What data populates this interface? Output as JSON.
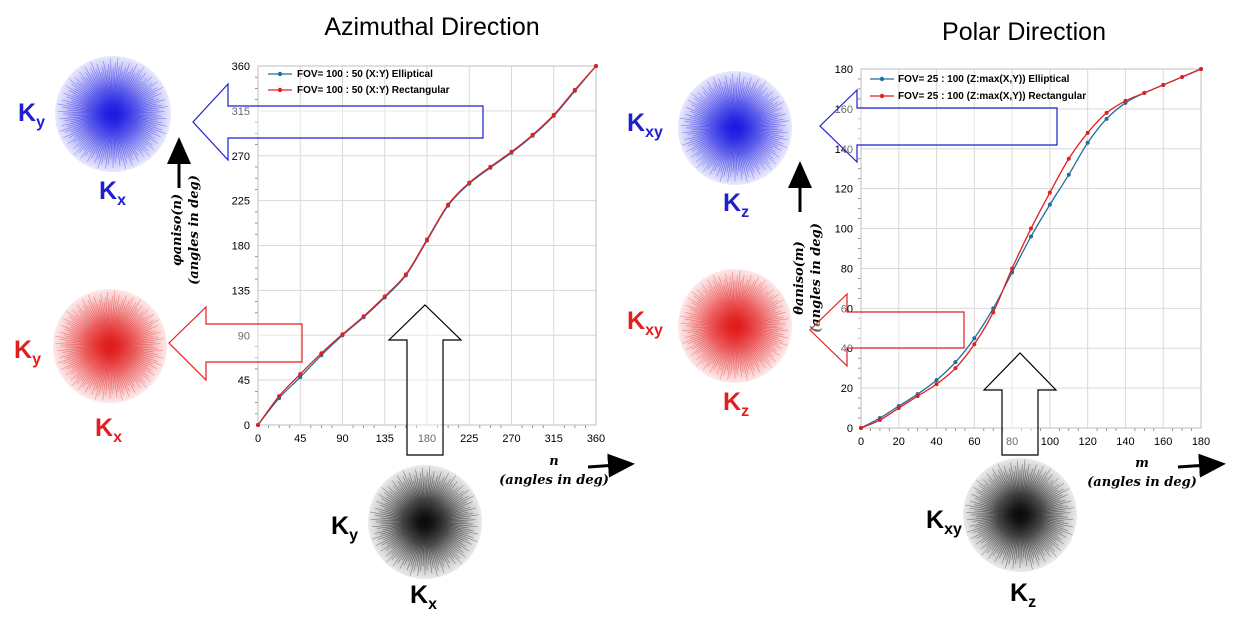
{
  "colors": {
    "blue": "#1f1fd0",
    "red": "#e02020",
    "black": "#111111",
    "series_blue": "#1f6f9f",
    "series_red": "#e02020",
    "grid": "#d9d9d9"
  },
  "panels": [
    {
      "title": "Azimuthal Direction"
    },
    {
      "title": "Polar Direction"
    }
  ],
  "chart_data": [
    {
      "type": "line",
      "title": "Azimuthal Direction",
      "xlabel_var": "n",
      "xlabel_unit": "(angles in deg)",
      "ylabel_var": "φaniso(n)",
      "ylabel_unit": "(angles in deg)",
      "xlim": [
        0,
        360
      ],
      "ylim": [
        0,
        360
      ],
      "xticks": [
        0,
        45,
        90,
        135,
        180,
        225,
        270,
        315,
        360
      ],
      "yticks": [
        0,
        45,
        90,
        135,
        180,
        225,
        270,
        315,
        360
      ],
      "grid": true,
      "legend_position": "top-left",
      "series": [
        {
          "name": "FOV= 100 : 50 (X:Y) Elliptical",
          "x": [
            0,
            22.5,
            45,
            67.5,
            90,
            112.5,
            135,
            157.5,
            180,
            202.5,
            225,
            247.5,
            270,
            292.5,
            315,
            337.5,
            360
          ],
          "y": [
            0,
            27,
            48,
            70,
            90,
            108,
            128,
            150,
            185,
            220,
            242,
            258,
            273,
            290,
            310,
            335,
            360
          ]
        },
        {
          "name": "FOV= 100 : 50 (X:Y) Rectangular",
          "x": [
            0,
            22.5,
            45,
            67.5,
            90,
            112.5,
            135,
            157.5,
            180,
            202.5,
            225,
            247.5,
            270,
            292.5,
            315,
            337.5,
            360
          ],
          "y": [
            0,
            29,
            51,
            72,
            91,
            109,
            129,
            151,
            186,
            221,
            243,
            259,
            274,
            291,
            311,
            336,
            360
          ]
        }
      ]
    },
    {
      "type": "line",
      "title": "Polar Direction",
      "xlabel_var": "m",
      "xlabel_unit": "(angles in deg)",
      "ylabel_var": "θaniso(m)",
      "ylabel_unit": "(angles in deg)",
      "xlim": [
        0,
        180
      ],
      "ylim": [
        0,
        180
      ],
      "xticks": [
        0,
        20,
        40,
        60,
        80,
        100,
        120,
        140,
        160,
        180
      ],
      "yticks": [
        0,
        20,
        40,
        60,
        80,
        100,
        120,
        140,
        160,
        180
      ],
      "grid": true,
      "legend_position": "top-left",
      "series": [
        {
          "name": "FOV= 25 : 100 (Z:max(X,Y)) Elliptical",
          "x": [
            0,
            10,
            20,
            30,
            40,
            50,
            60,
            70,
            80,
            90,
            100,
            110,
            120,
            130,
            140,
            150,
            160,
            170,
            180
          ],
          "y": [
            0,
            5,
            11,
            17,
            24,
            33,
            45,
            60,
            78,
            96,
            112,
            127,
            143,
            155,
            163,
            168,
            172,
            176,
            180
          ]
        },
        {
          "name": "FOV= 25 : 100 (Z:max(X,Y)) Rectangular",
          "x": [
            0,
            10,
            20,
            30,
            40,
            50,
            60,
            70,
            80,
            90,
            100,
            110,
            120,
            130,
            140,
            150,
            160,
            170,
            180
          ],
          "y": [
            0,
            4,
            10,
            16,
            22,
            30,
            42,
            58,
            80,
            100,
            118,
            135,
            148,
            158,
            164,
            168,
            172,
            176,
            180
          ]
        }
      ]
    }
  ],
  "insets": {
    "az_top": {
      "k1": "K",
      "k1_sub": "y",
      "k2": "K",
      "k2_sub": "x"
    },
    "az_mid": {
      "k1": "K",
      "k1_sub": "y",
      "k2": "K",
      "k2_sub": "x"
    },
    "az_bot": {
      "k1": "K",
      "k1_sub": "y",
      "k2": "K",
      "k2_sub": "x"
    },
    "pol_top": {
      "k1": "K",
      "k1_sub": "xy",
      "k2": "K",
      "k2_sub": "z"
    },
    "pol_mid": {
      "k1": "K",
      "k1_sub": "xy",
      "k2": "K",
      "k2_sub": "z"
    },
    "pol_bot": {
      "k1": "K",
      "k1_sub": "xy",
      "k2": "K",
      "k2_sub": "z"
    }
  }
}
